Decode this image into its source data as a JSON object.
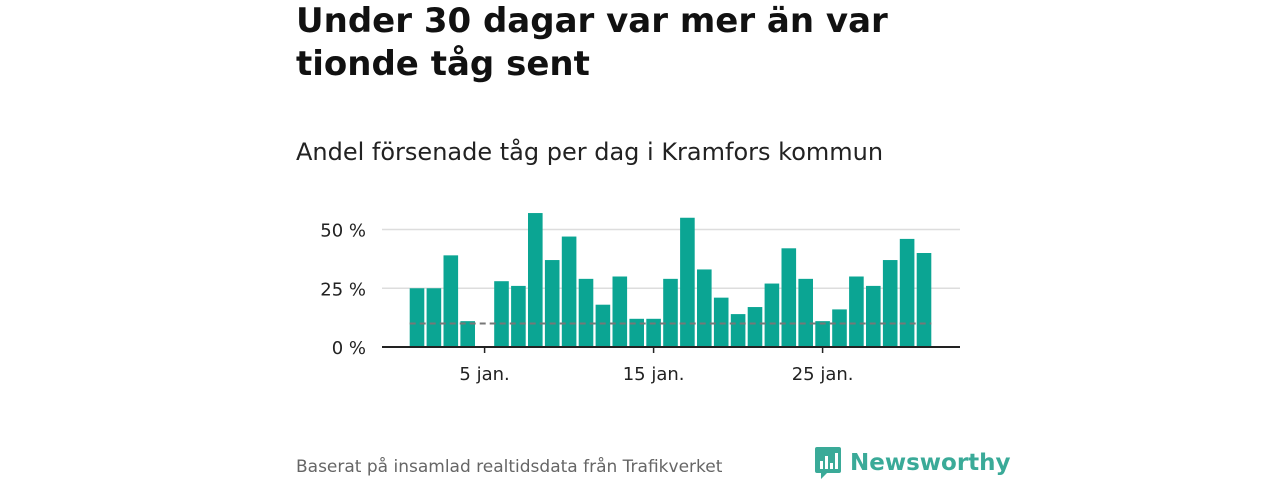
{
  "header": {
    "title": "Under 30 dagar var mer än var tionde tåg sent",
    "subtitle": "Andel försenade tåg per dag i Kramfors kommun"
  },
  "footer": {
    "source": "Baserat på insamlad realtidsdata från Trafikverket",
    "brand": "Newsworthy"
  },
  "colors": {
    "bar": "#0ba593",
    "reference_line": "#777777",
    "grid": "#dddddd",
    "axis": "#222222",
    "brand": "#3aaa98"
  },
  "icons": {
    "logo": "bar-chart-speech-bubble-icon"
  },
  "chart_data": {
    "type": "bar",
    "title": "Andel försenade tåg per dag i Kramfors kommun",
    "x": [
      1,
      2,
      3,
      4,
      5,
      6,
      7,
      8,
      9,
      10,
      11,
      12,
      13,
      14,
      15,
      16,
      17,
      18,
      19,
      20,
      21,
      22,
      23,
      24,
      25,
      26,
      27,
      28,
      29,
      30,
      31
    ],
    "values": [
      25,
      25,
      39,
      11,
      0,
      28,
      26,
      57,
      37,
      47,
      29,
      18,
      30,
      12,
      12,
      29,
      55,
      33,
      21,
      14,
      17,
      27,
      42,
      29,
      11,
      16,
      30,
      26,
      37,
      46,
      40
    ],
    "reference_value": 10,
    "ylim": [
      0,
      60
    ],
    "yticks": [
      0,
      25,
      50
    ],
    "ytick_labels": [
      "0 %",
      "25 %",
      "50 %"
    ],
    "xticks": [
      5,
      15,
      25
    ],
    "xtick_labels": [
      "5 jan.",
      "15 jan.",
      "25 jan."
    ],
    "grid": true,
    "xlabel": "",
    "ylabel": ""
  }
}
